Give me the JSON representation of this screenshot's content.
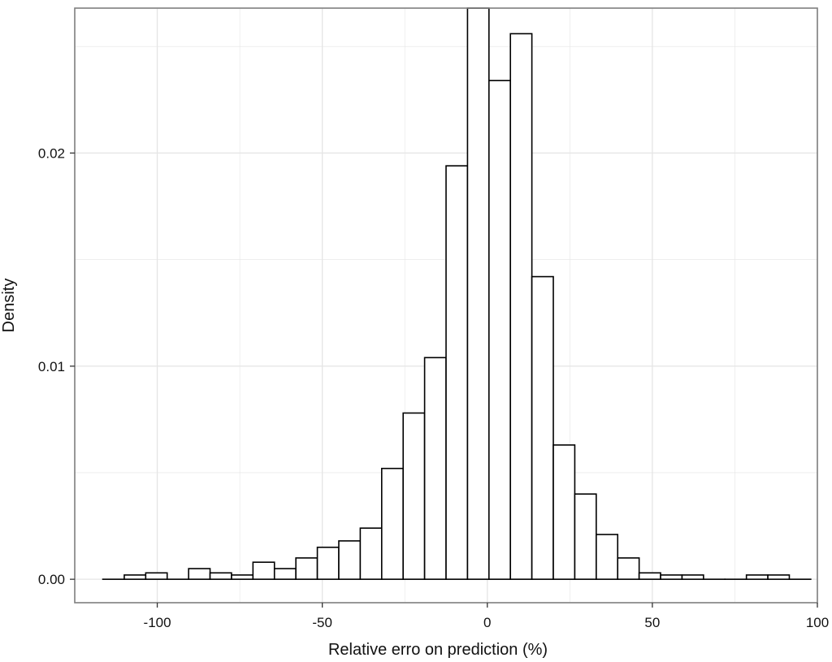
{
  "chart_data": {
    "type": "bar",
    "xlabel": "Relative erro on prediction (%)",
    "ylabel": "Density",
    "xlim": [
      -125,
      100
    ],
    "ylim": [
      -0.0011,
      0.0268
    ],
    "x_ticks": [
      -100,
      -50,
      0,
      50,
      100
    ],
    "x_tick_labels": [
      "-100",
      "-50",
      "0",
      "50",
      "100"
    ],
    "y_ticks": [
      0.0,
      0.01,
      0.02
    ],
    "y_tick_labels": [
      "0.00",
      "0.01",
      "0.02"
    ],
    "bin_width": 6.5,
    "bin_start": -116.5,
    "values": [
      0,
      0.0002,
      0.0003,
      0,
      0.0005,
      0.0003,
      0.0002,
      0.0008,
      0.0005,
      0.001,
      0.0015,
      0.0018,
      0.0024,
      0.0052,
      0.0078,
      0.0104,
      0.0194,
      0.0268,
      0.0234,
      0.0256,
      0.0142,
      0.0063,
      0.004,
      0.0021,
      0.001,
      0.0003,
      0.0002,
      0.0002,
      0,
      0,
      0.0002,
      0.0002,
      0
    ],
    "grid": true,
    "bar_fill": "#ffffff",
    "bar_stroke": "#000000",
    "grid_color": "#e5e5e5",
    "panel_border_color": "#7f7f7f"
  }
}
